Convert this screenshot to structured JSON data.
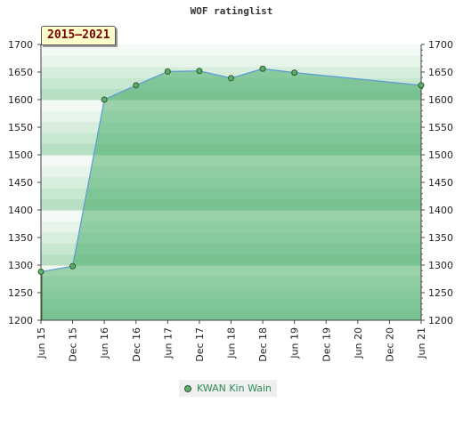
{
  "chart_data": {
    "type": "area",
    "title": "WOF ratinglist",
    "period_label": "2015—2021",
    "ylim": [
      1200,
      1700
    ],
    "yticks": [
      1200,
      1250,
      1300,
      1350,
      1400,
      1450,
      1500,
      1550,
      1600,
      1650,
      1700
    ],
    "xtick_labels": [
      "Jun 15",
      "Dec 15",
      "Jun 16",
      "Dec 16",
      "Jun 17",
      "Dec 17",
      "Jun 18",
      "Dec 18",
      "Jun 19",
      "Dec 19",
      "Jun 20",
      "Dec 20",
      "Jun 21"
    ],
    "series": [
      {
        "name": "KWAN Kin Wain",
        "x": [
          "Jun 15",
          "Dec 15",
          "Jun 16",
          "Dec 16",
          "Jun 17",
          "Dec 17",
          "Jun 18",
          "Dec 18",
          "Jun 19",
          "Jun 21"
        ],
        "values": [
          1288,
          1298,
          1600,
          1626,
          1651,
          1652,
          1639,
          1656,
          1649,
          1626
        ]
      }
    ],
    "legend_position": "bottom-center",
    "grid": true
  },
  "colors": {
    "area_fill": "#7fc495",
    "line": "#5b9bd5",
    "marker_fill": "#5fae6b",
    "marker_stroke": "#2b5a2b"
  }
}
